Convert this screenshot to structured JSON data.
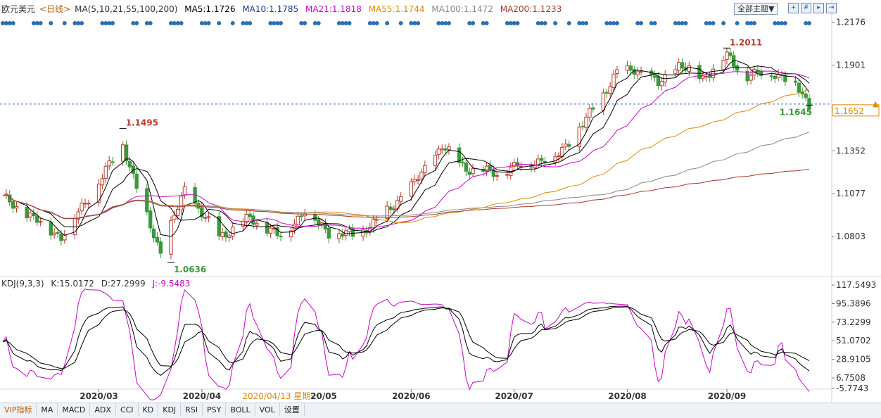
{
  "header": {
    "symbol": "欧元美元",
    "period": "<日线>",
    "ma_label": "MA(5,10,21,55,100,200)",
    "ma5": "MA5:1.1726",
    "ma10": "MA10:1.1785",
    "ma21": "MA21:1.1818",
    "ma55": "MA55:1.1744",
    "ma100": "MA100:1.1472",
    "ma200": "MA200:1.1233",
    "theme_button": "全部主题▼"
  },
  "kdj_header": {
    "name": "KDJ(9,3,3)",
    "k": "K:15.0172",
    "d": "D:27.2999",
    "j": "J:-9.5483"
  },
  "tabs": [
    "VIP指标",
    "MA",
    "MACD",
    "ADX",
    "CCI",
    "KD",
    "KDJ",
    "RSI",
    "PSY",
    "BOLL",
    "VOL",
    "设置"
  ],
  "colors": {
    "up": "#c0392b",
    "down": "#3a9a3a",
    "ma5": "#000000",
    "ma10": "#000000",
    "ma21": "#d000d0",
    "ma55": "#e08a00",
    "ma100": "#888888",
    "ma200": "#a8372a",
    "kdj_k": "#000000",
    "kdj_d": "#000000",
    "kdj_j": "#d000d0"
  },
  "chart_data": [
    {
      "type": "candlestick",
      "title": "欧元美元 <日线>",
      "y_ticks": [
        "1.2176",
        "1.1901",
        "1.1352",
        "1.1077",
        "1.0803"
      ],
      "current_price_label": "1.1652",
      "current_price": 1.1652,
      "annotations": [
        {
          "text": "1.1495",
          "date": "2020-03-09",
          "value": 1.1495
        },
        {
          "text": "1.0636",
          "date": "2020-03-23",
          "value": 1.0636
        },
        {
          "text": "1.2011",
          "date": "2020-09-01",
          "value": 1.2011
        },
        {
          "text": "1.1645",
          "date": "2020-09-25",
          "value": 1.1645
        }
      ],
      "ylim": [
        1.055,
        1.222
      ],
      "keypoints": [
        {
          "date": "2020-02-03",
          "value": 1.105
        },
        {
          "date": "2020-02-20",
          "value": 1.08
        },
        {
          "date": "2020-03-02",
          "value": 1.115
        },
        {
          "date": "2020-03-09",
          "value": 1.14
        },
        {
          "date": "2020-03-13",
          "value": 1.111
        },
        {
          "date": "2020-03-20",
          "value": 1.07
        },
        {
          "date": "2020-03-27",
          "value": 1.11
        },
        {
          "date": "2020-04-06",
          "value": 1.08
        },
        {
          "date": "2020-04-15",
          "value": 1.092
        },
        {
          "date": "2020-04-24",
          "value": 1.08
        },
        {
          "date": "2020-05-01",
          "value": 1.097
        },
        {
          "date": "2020-05-08",
          "value": 1.083
        },
        {
          "date": "2020-05-15",
          "value": 1.081
        },
        {
          "date": "2020-05-22",
          "value": 1.09
        },
        {
          "date": "2020-06-01",
          "value": 1.112
        },
        {
          "date": "2020-06-10",
          "value": 1.138
        },
        {
          "date": "2020-06-17",
          "value": 1.124
        },
        {
          "date": "2020-06-26",
          "value": 1.121
        },
        {
          "date": "2020-07-06",
          "value": 1.128
        },
        {
          "date": "2020-07-13",
          "value": 1.131
        },
        {
          "date": "2020-07-21",
          "value": 1.152
        },
        {
          "date": "2020-07-31",
          "value": 1.185
        },
        {
          "date": "2020-08-05",
          "value": 1.188
        },
        {
          "date": "2020-08-12",
          "value": 1.178
        },
        {
          "date": "2020-08-18",
          "value": 1.19
        },
        {
          "date": "2020-08-25",
          "value": 1.182
        },
        {
          "date": "2020-09-01",
          "value": 1.196
        },
        {
          "date": "2020-09-07",
          "value": 1.183
        },
        {
          "date": "2020-09-14",
          "value": 1.186
        },
        {
          "date": "2020-09-21",
          "value": 1.178
        },
        {
          "date": "2020-09-25",
          "value": 1.165
        }
      ],
      "ma_levels_end": {
        "MA5": 1.1726,
        "MA10": 1.1785,
        "MA21": 1.1818,
        "MA55": 1.1744,
        "MA100": 1.1472,
        "MA200": 1.1233
      }
    },
    {
      "type": "line",
      "title": "KDJ(9,3,3)",
      "y_ticks": [
        "117.5493",
        "95.3896",
        "73.2299",
        "51.0702",
        "28.9105",
        "6.7508",
        "-5.7743"
      ],
      "ylim": [
        -5.7743,
        117.5493
      ],
      "last_values": {
        "K": 15.0172,
        "D": 27.2999,
        "J": -9.5483
      }
    }
  ],
  "x_axis": {
    "labels": [
      "2020/03",
      "2020/04",
      "2020/05",
      "2020/06",
      "2020/07",
      "2020/08",
      "2020/09"
    ],
    "cursor_label": "2020/04/13 星期一",
    "partial_label": "20/05"
  }
}
